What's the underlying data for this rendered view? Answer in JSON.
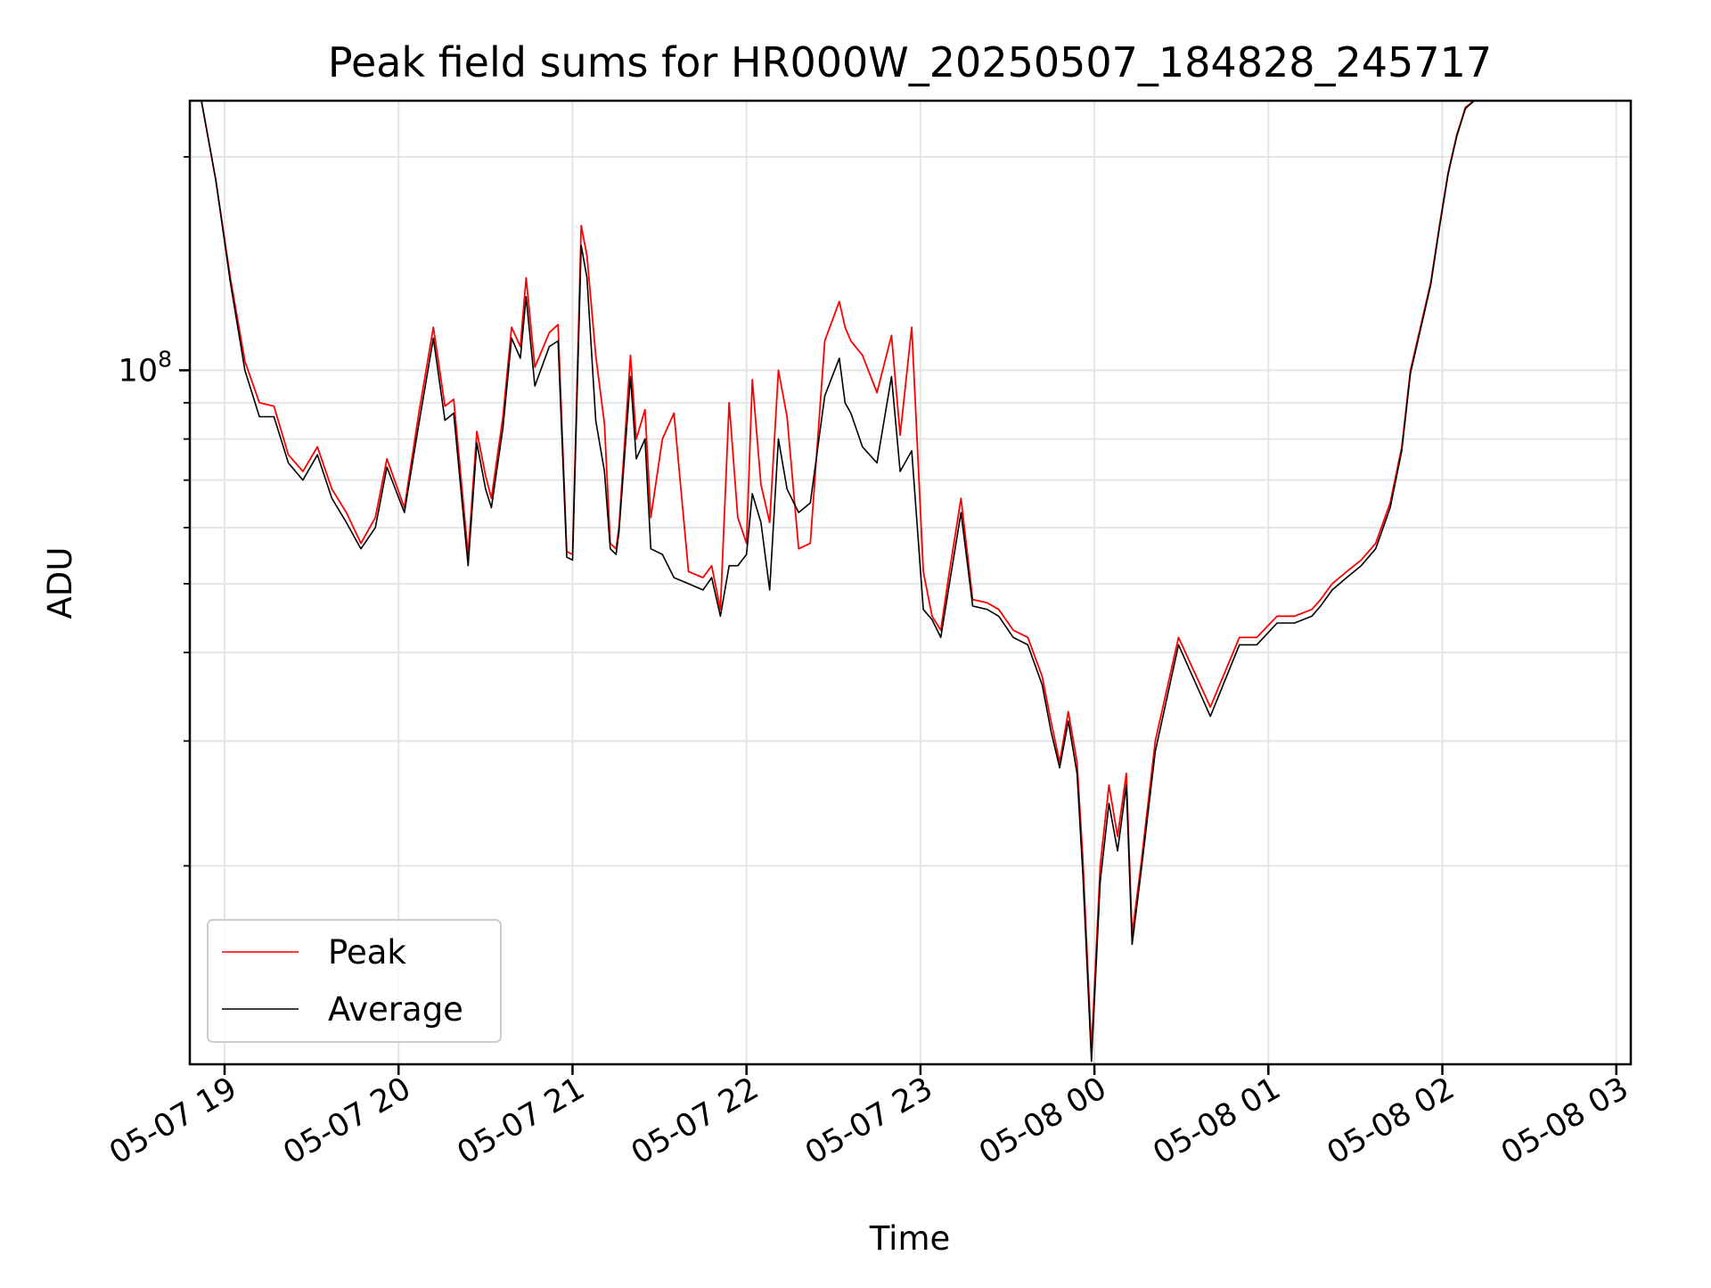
{
  "chart_data": {
    "type": "line",
    "title": "Peak field sums for HR000W_20250507_184828_245717",
    "xlabel": "Time",
    "ylabel": "ADU",
    "x_scale": "time",
    "y_scale": "log",
    "xlim": [
      "2025-05-07 18:48",
      "2025-05-08 03:05"
    ],
    "ylim": [
      10500000,
      240000000
    ],
    "grid": true,
    "legend_placement": "lower left",
    "x_tick_labels": [
      "05-07 19",
      "05-07 20",
      "05-07 21",
      "05-07 22",
      "05-07 23",
      "05-08 00",
      "05-08 01",
      "05-08 02",
      "05-08 03"
    ],
    "x_ticks": [
      "2025-05-07 19:00",
      "2025-05-07 20:00",
      "2025-05-07 21:00",
      "2025-05-07 22:00",
      "2025-05-07 23:00",
      "2025-05-08 00:00",
      "2025-05-08 01:00",
      "2025-05-08 02:00",
      "2025-05-08 03:00"
    ],
    "y_major_ticks": [
      {
        "value": 100000000,
        "base": "10",
        "exponent": "8"
      }
    ],
    "y_minor_ticks": [
      20000000,
      30000000,
      40000000,
      50000000,
      60000000,
      70000000,
      80000000,
      90000000,
      200000000
    ],
    "x": [
      "2025-05-07 18:52",
      "2025-05-07 18:57",
      "2025-05-07 19:02",
      "2025-05-07 19:07",
      "2025-05-07 19:12",
      "2025-05-07 19:17",
      "2025-05-07 19:22",
      "2025-05-07 19:27",
      "2025-05-07 19:32",
      "2025-05-07 19:37",
      "2025-05-07 19:42",
      "2025-05-07 19:47",
      "2025-05-07 19:52",
      "2025-05-07 19:56",
      "2025-05-07 20:02",
      "2025-05-07 20:07",
      "2025-05-07 20:12",
      "2025-05-07 20:16",
      "2025-05-07 20:19",
      "2025-05-07 20:24",
      "2025-05-07 20:27",
      "2025-05-07 20:30",
      "2025-05-07 20:32",
      "2025-05-07 20:36",
      "2025-05-07 20:39",
      "2025-05-07 20:42",
      "2025-05-07 20:44",
      "2025-05-07 20:47",
      "2025-05-07 20:52",
      "2025-05-07 20:55",
      "2025-05-07 20:58",
      "2025-05-07 21:00",
      "2025-05-07 21:03",
      "2025-05-07 21:05",
      "2025-05-07 21:08",
      "2025-05-07 21:11",
      "2025-05-07 21:13",
      "2025-05-07 21:15",
      "2025-05-07 21:16",
      "2025-05-07 21:20",
      "2025-05-07 21:22",
      "2025-05-07 21:25",
      "2025-05-07 21:27",
      "2025-05-07 21:31",
      "2025-05-07 21:35",
      "2025-05-07 21:40",
      "2025-05-07 21:45",
      "2025-05-07 21:48",
      "2025-05-07 21:51",
      "2025-05-07 21:54",
      "2025-05-07 21:57",
      "2025-05-07 22:00",
      "2025-05-07 22:02",
      "2025-05-07 22:05",
      "2025-05-07 22:08",
      "2025-05-07 22:11",
      "2025-05-07 22:14",
      "2025-05-07 22:18",
      "2025-05-07 22:22",
      "2025-05-07 22:27",
      "2025-05-07 22:32",
      "2025-05-07 22:34",
      "2025-05-07 22:36",
      "2025-05-07 22:40",
      "2025-05-07 22:45",
      "2025-05-07 22:50",
      "2025-05-07 22:53",
      "2025-05-07 22:57",
      "2025-05-07 23:01",
      "2025-05-07 23:04",
      "2025-05-07 23:07",
      "2025-05-07 23:10",
      "2025-05-07 23:14",
      "2025-05-07 23:18",
      "2025-05-07 23:23",
      "2025-05-07 23:27",
      "2025-05-07 23:32",
      "2025-05-07 23:37",
      "2025-05-07 23:42",
      "2025-05-07 23:45",
      "2025-05-07 23:48",
      "2025-05-07 23:51",
      "2025-05-07 23:54",
      "2025-05-07 23:56",
      "2025-05-07 23:59",
      "2025-05-08 00:02",
      "2025-05-08 00:05",
      "2025-05-08 00:08",
      "2025-05-08 00:11",
      "2025-05-08 00:13",
      "2025-05-08 00:16",
      "2025-05-08 00:21",
      "2025-05-08 00:29",
      "2025-05-08 00:40",
      "2025-05-08 00:50",
      "2025-05-08 00:56",
      "2025-05-08 01:03",
      "2025-05-08 01:09",
      "2025-05-08 01:15",
      "2025-05-08 01:18",
      "2025-05-08 01:22",
      "2025-05-08 01:27",
      "2025-05-08 01:32",
      "2025-05-08 01:37",
      "2025-05-08 01:42",
      "2025-05-08 01:46",
      "2025-05-08 01:49",
      "2025-05-08 01:52",
      "2025-05-08 01:56",
      "2025-05-08 01:59",
      "2025-05-08 02:02",
      "2025-05-08 02:05",
      "2025-05-08 02:08",
      "2025-05-08 02:11",
      "2025-05-08 02:16",
      "2025-05-08 02:20",
      "2025-05-08 02:25",
      "2025-05-08 02:30",
      "2025-05-08 02:35",
      "2025-05-08 02:40",
      "2025-05-08 02:45",
      "2025-05-08 02:50",
      "2025-05-08 02:54",
      "2025-05-08 02:58",
      "2025-05-08 03:03"
    ],
    "series": [
      {
        "name": "Peak",
        "color": "#ff0000",
        "values": [
          240000000,
          185000000,
          135000000,
          103000000,
          90000000,
          89000000,
          76000000,
          72000000,
          78000000,
          68000000,
          63000000,
          57000000,
          62000000,
          75000000,
          64000000,
          87000000,
          115000000,
          89000000,
          91000000,
          55000000,
          82000000,
          71000000,
          66000000,
          86000000,
          115000000,
          108000000,
          135000000,
          101000000,
          113000000,
          116000000,
          55500000,
          55000000,
          160000000,
          145000000,
          105000000,
          84000000,
          57000000,
          56000000,
          60000000,
          105000000,
          80000000,
          88000000,
          62000000,
          80000000,
          87000000,
          52000000,
          51000000,
          53000000,
          46000000,
          90000000,
          62000000,
          57000000,
          97000000,
          69000000,
          61000000,
          100000000,
          86000000,
          56000000,
          57000000,
          110000000,
          125000000,
          115000000,
          110000000,
          105000000,
          93000000,
          112000000,
          81000000,
          115000000,
          52000000,
          45000000,
          43000000,
          52000000,
          66000000,
          47500000,
          47000000,
          46000000,
          43000000,
          42000000,
          37000000,
          32000000,
          28000000,
          33000000,
          28000000,
          20500000,
          11000000,
          20000000,
          26000000,
          22000000,
          27000000,
          16000000,
          20000000,
          30000000,
          42000000,
          33500000,
          42000000,
          42000000,
          45000000,
          45000000,
          46000000,
          47500000,
          50000000,
          52000000,
          54000000,
          57000000,
          65000000,
          78000000,
          100000000,
          113000000,
          133000000,
          160000000,
          190000000,
          215000000,
          235000000,
          240000000,
          240000000,
          240000000,
          240000000,
          240000000,
          240000000,
          240000000,
          240000000,
          240000000,
          240000000,
          240000000,
          240000000
        ]
      },
      {
        "name": "Average",
        "color": "#000000",
        "values": [
          240000000,
          185000000,
          133000000,
          100000000,
          86000000,
          86000000,
          74000000,
          70000000,
          76000000,
          66000000,
          61000000,
          56000000,
          60000000,
          73000000,
          63000000,
          84000000,
          111000000,
          85000000,
          87000000,
          53000000,
          79000000,
          68000000,
          64000000,
          83000000,
          111000000,
          104000000,
          127000000,
          95000000,
          108000000,
          110000000,
          54500000,
          54000000,
          150000000,
          135000000,
          85000000,
          72000000,
          56000000,
          55000000,
          59000000,
          98000000,
          75000000,
          80000000,
          56000000,
          55000000,
          51000000,
          50000000,
          49000000,
          51000000,
          45000000,
          53000000,
          53000000,
          55000000,
          67000000,
          61000000,
          49000000,
          80000000,
          68000000,
          63000000,
          65000000,
          92000000,
          104000000,
          90000000,
          87000000,
          78000000,
          74000000,
          98000000,
          72000000,
          77000000,
          46000000,
          44500000,
          42000000,
          50000000,
          63000000,
          46500000,
          46000000,
          45000000,
          42000000,
          41000000,
          36000000,
          31000000,
          27500000,
          32000000,
          27000000,
          19500000,
          10600000,
          19000000,
          24500000,
          21000000,
          26000000,
          15500000,
          19500000,
          29000000,
          41000000,
          32500000,
          41000000,
          41000000,
          44000000,
          44000000,
          45000000,
          46500000,
          49000000,
          51000000,
          53000000,
          56000000,
          64000000,
          77000000,
          99000000,
          112000000,
          132000000,
          159000000,
          189000000,
          214000000,
          234000000,
          240000000,
          240000000,
          240000000,
          240000000,
          240000000,
          240000000,
          240000000,
          240000000,
          240000000,
          240000000,
          240000000,
          240000000
        ]
      }
    ]
  }
}
